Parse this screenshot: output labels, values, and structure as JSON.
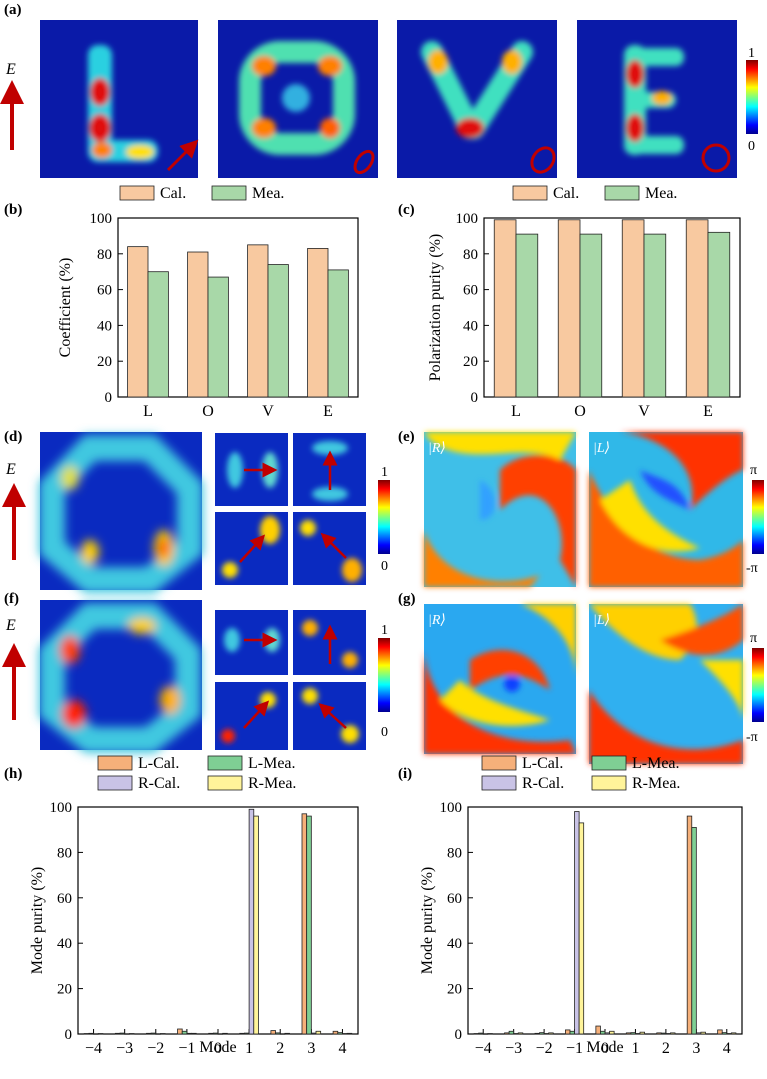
{
  "panel_labels": {
    "a": "(a)",
    "b": "(b)",
    "c": "(c)",
    "d": "(d)",
    "e": "(e)",
    "f": "(f)",
    "g": "(g)",
    "h": "(h)",
    "i": "(i)"
  },
  "efield_label": "E",
  "intensity_scale": {
    "max": "1",
    "min": "0"
  },
  "phase_scale": {
    "max": "π",
    "min": "-π"
  },
  "state_labels": {
    "R": "|R⟩",
    "L": "|L⟩"
  },
  "colors": {
    "cal": "#f8c9a0",
    "mea": "#a8d8a8",
    "l_cal": "#f6b07a",
    "l_mea": "#7fcf94",
    "r_cal": "#c9c3e6",
    "r_mea": "#fff49a",
    "arrow": "#c00000"
  },
  "chart_data": [
    {
      "id": "b",
      "type": "bar",
      "title": "",
      "legend": [
        "Cal.",
        "Mea."
      ],
      "legend_position": "top",
      "categories": [
        "L",
        "O",
        "V",
        "E"
      ],
      "series": [
        {
          "name": "Cal.",
          "values": [
            84,
            81,
            85,
            83
          ]
        },
        {
          "name": "Mea.",
          "values": [
            70,
            67,
            74,
            71
          ]
        }
      ],
      "ylabel": "Coefficient (%)",
      "xlabel": "",
      "ylim": [
        0,
        100
      ],
      "yticks": [
        "0",
        "20",
        "40",
        "60",
        "80",
        "100"
      ]
    },
    {
      "id": "c",
      "type": "bar",
      "title": "",
      "legend": [
        "Cal.",
        "Mea."
      ],
      "legend_position": "top",
      "categories": [
        "L",
        "O",
        "V",
        "E"
      ],
      "series": [
        {
          "name": "Cal.",
          "values": [
            99,
            99,
            99,
            99
          ]
        },
        {
          "name": "Mea.",
          "values": [
            91,
            91,
            91,
            92
          ]
        }
      ],
      "ylabel": "Polarization purity (%)",
      "xlabel": "",
      "ylim": [
        0,
        100
      ],
      "yticks": [
        "0",
        "20",
        "40",
        "60",
        "80",
        "100"
      ]
    },
    {
      "id": "h",
      "type": "bar",
      "title": "",
      "legend": [
        "L-Cal.",
        "L-Mea.",
        "R-Cal.",
        "R-Mea."
      ],
      "legend_position": "top",
      "categories": [
        "−4",
        "−3",
        "−2",
        "−1",
        "0",
        "1",
        "2",
        "3",
        "4"
      ],
      "series": [
        {
          "name": "L-Cal.",
          "values": [
            0.2,
            0.3,
            0.3,
            2.2,
            0.3,
            0.3,
            1.5,
            97,
            1.2
          ]
        },
        {
          "name": "L-Mea.",
          "values": [
            0.3,
            0.4,
            0.4,
            1.2,
            0.4,
            0.4,
            0.5,
            96,
            0.6
          ]
        },
        {
          "name": "R-Cal.",
          "values": [
            0.1,
            0.1,
            0.1,
            0.3,
            0.1,
            99,
            0.1,
            0.4,
            0.2
          ]
        },
        {
          "name": "R-Mea.",
          "values": [
            0.2,
            0.2,
            0.2,
            0.3,
            0.3,
            96,
            0.3,
            1.2,
            0.3
          ]
        }
      ],
      "ylabel": "Mode purity (%)",
      "xlabel": "Mode",
      "ylim": [
        0,
        100
      ],
      "yticks": [
        "0",
        "20",
        "40",
        "60",
        "80",
        "100"
      ]
    },
    {
      "id": "i",
      "type": "bar",
      "title": "",
      "legend": [
        "L-Cal.",
        "L-Mea.",
        "R-Cal.",
        "R-Mea."
      ],
      "legend_position": "top",
      "categories": [
        "−4",
        "−3",
        "−2",
        "−1",
        "0",
        "1",
        "2",
        "3",
        "4"
      ],
      "series": [
        {
          "name": "L-Cal.",
          "values": [
            0.2,
            0.5,
            0.3,
            1.8,
            3.5,
            0.5,
            0.5,
            96,
            1.8
          ]
        },
        {
          "name": "L-Mea.",
          "values": [
            0.4,
            1.2,
            0.6,
            1.2,
            1.2,
            0.6,
            0.4,
            91,
            0.6
          ]
        },
        {
          "name": "R-Cal.",
          "values": [
            0.1,
            0.2,
            0.2,
            98,
            0.5,
            0.2,
            0.2,
            0.5,
            0.2
          ]
        },
        {
          "name": "R-Mea.",
          "values": [
            0.2,
            0.5,
            0.5,
            93,
            1.2,
            0.8,
            0.5,
            0.8,
            0.5
          ]
        }
      ],
      "ylabel": "Mode purity (%)",
      "xlabel": "Mode",
      "ylim": [
        0,
        100
      ],
      "yticks": [
        "0",
        "20",
        "40",
        "60",
        "80",
        "100"
      ]
    }
  ]
}
